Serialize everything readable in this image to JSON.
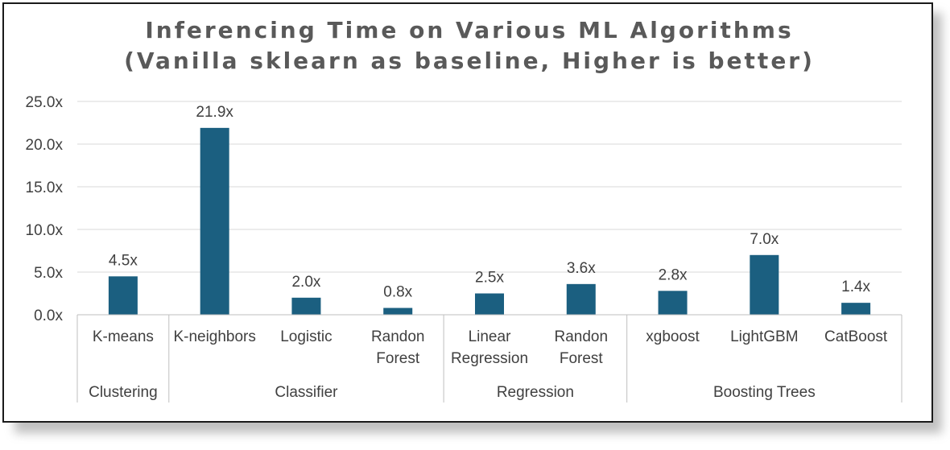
{
  "chart_data": {
    "type": "bar",
    "title": [
      "Inferencing Time on Various ML Algorithms",
      "(Vanilla sklearn as baseline, Higher is better)"
    ],
    "categories": [
      [
        "K-means"
      ],
      [
        "K-neighbors"
      ],
      [
        "Logistic"
      ],
      [
        "Randon",
        "Forest"
      ],
      [
        "Linear",
        "Regression"
      ],
      [
        "Randon",
        "Forest"
      ],
      [
        "xgboost"
      ],
      [
        "LightGBM"
      ],
      [
        "CatBoost"
      ]
    ],
    "groups": [
      {
        "name": "Clustering",
        "count": 1
      },
      {
        "name": "Classifier",
        "count": 3
      },
      {
        "name": "Regression",
        "count": 2
      },
      {
        "name": "Boosting Trees",
        "count": 3
      }
    ],
    "values": [
      4.5,
      21.9,
      2.0,
      0.8,
      2.5,
      3.6,
      2.8,
      7.0,
      1.4
    ],
    "data_labels": [
      "4.5x",
      "21.9x",
      "2.0x",
      "0.8x",
      "2.5x",
      "3.6x",
      "2.8x",
      "7.0x",
      "1.4x"
    ],
    "yticks": [
      0,
      5,
      10,
      15,
      20,
      25
    ],
    "ytick_labels": [
      "0.0x",
      "5.0x",
      "10.0x",
      "15.0x",
      "20.0x",
      "25.0x"
    ],
    "ylim": [
      0,
      25
    ],
    "xlabel": "",
    "ylabel": "",
    "grid": true,
    "legend": "none",
    "colors": {
      "bar": "#1b5f80",
      "grid": "#d9d9d9",
      "axis": "#bfbfbf",
      "title": "#595959",
      "text": "#404040"
    }
  }
}
